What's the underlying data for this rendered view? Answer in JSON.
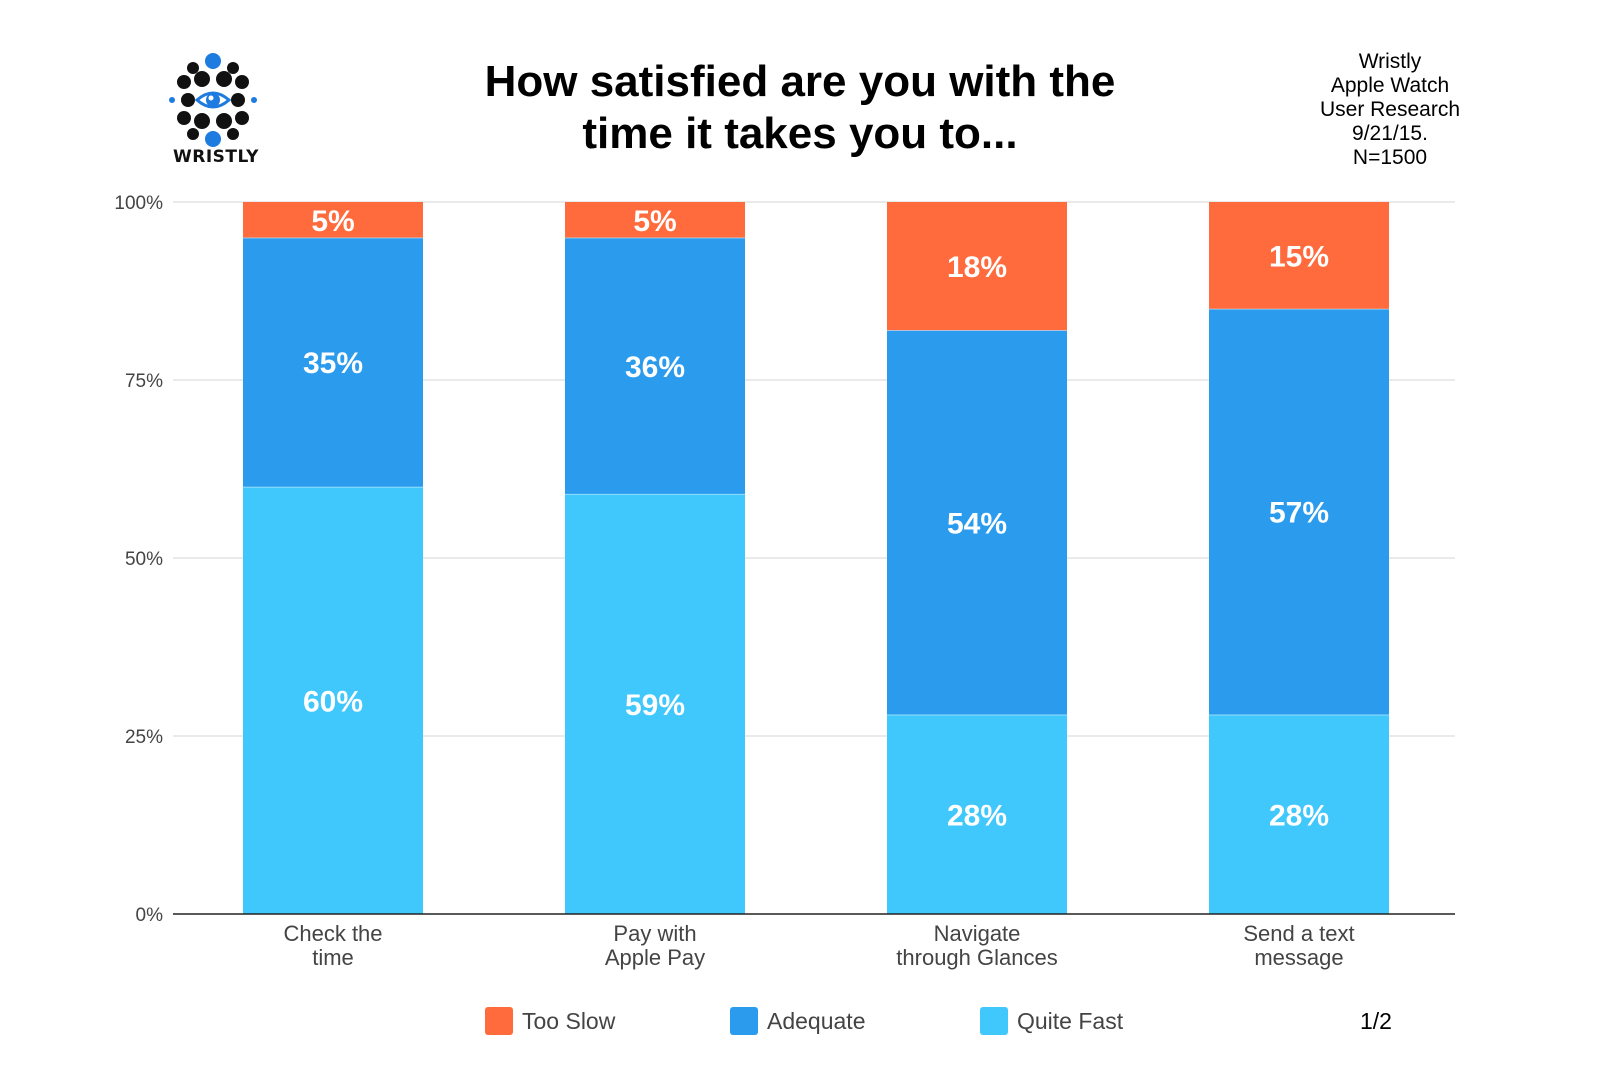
{
  "header": {
    "title_line1": "How satisfied are you with the",
    "title_line2": "time it takes you to...",
    "logo_text": "WRISTLY",
    "info_lines": [
      "Wristly",
      "Apple Watch",
      "User Research",
      "9/21/15.",
      "N=1500"
    ]
  },
  "page_number": "1/2",
  "colors": {
    "too_slow": "#FF6B3D",
    "adequate": "#2B9BEE",
    "quite_fast": "#40C7FB",
    "logo_accent": "#1E7BE0"
  },
  "legend": [
    {
      "label": "Too Slow",
      "color": "#FF6B3D"
    },
    {
      "label": "Adequate",
      "color": "#2B9BEE"
    },
    {
      "label": "Quite Fast",
      "color": "#40C7FB"
    }
  ],
  "chart_data": {
    "type": "bar",
    "stacked": true,
    "title": "How satisfied are you with the time it takes you to...",
    "categories": [
      [
        "Check the",
        "time"
      ],
      [
        "Pay with",
        "Apple Pay"
      ],
      [
        "Navigate",
        "through Glances"
      ],
      [
        "Send a text",
        "message"
      ]
    ],
    "series": [
      {
        "name": "Quite Fast",
        "values": [
          60,
          59,
          28,
          28
        ],
        "labels": [
          "60%",
          "59%",
          "28%",
          "28%"
        ]
      },
      {
        "name": "Adequate",
        "values": [
          35,
          36,
          54,
          57
        ],
        "labels": [
          "35%",
          "36%",
          "54%",
          "57%"
        ]
      },
      {
        "name": "Too Slow",
        "values": [
          5,
          5,
          18,
          15
        ],
        "labels": [
          "5%",
          "5%",
          "18%",
          "15%"
        ]
      }
    ],
    "ylim": [
      0,
      100
    ],
    "yticks": [
      "0%",
      "25%",
      "50%",
      "75%",
      "100%"
    ],
    "ytick_values": [
      0,
      25,
      50,
      75,
      100
    ],
    "grid": true,
    "legend_position": "bottom"
  }
}
